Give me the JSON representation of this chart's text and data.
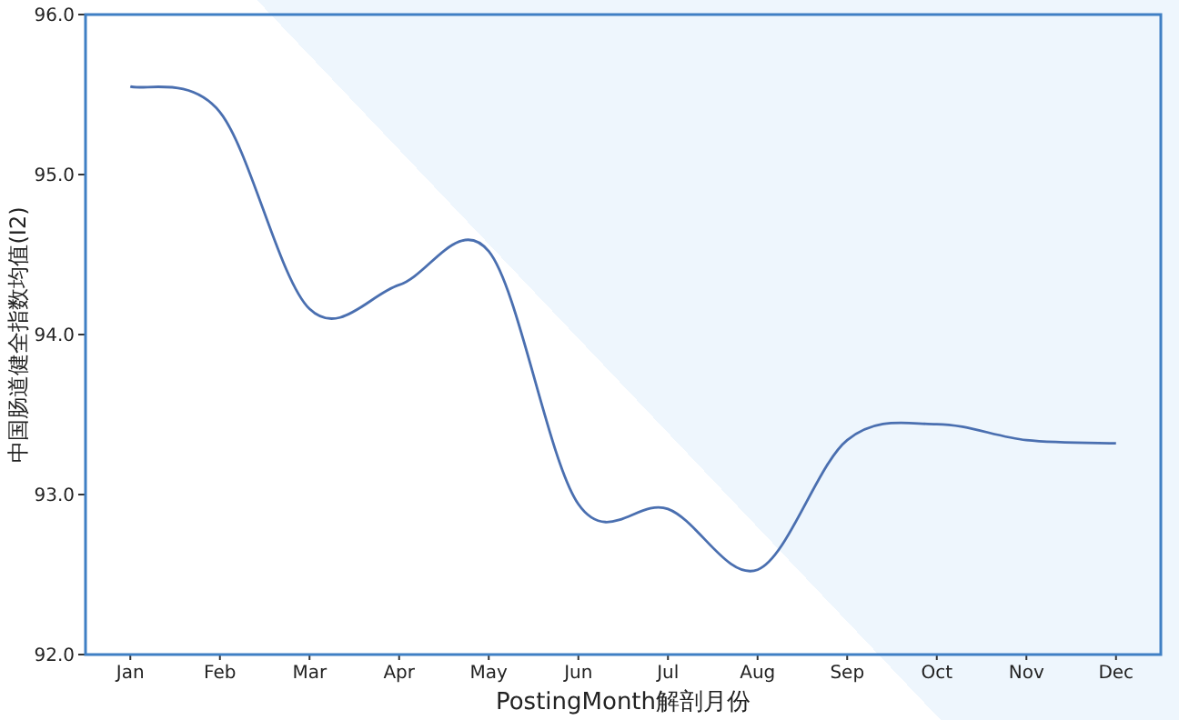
{
  "chart_data": {
    "type": "line",
    "xlabel": "PostingMonth解剖月份",
    "ylabel": "中国肠道健全指数均值(I2)",
    "categories": [
      "Jan",
      "Feb",
      "Mar",
      "Apr",
      "May",
      "Jun",
      "Jul",
      "Aug",
      "Sep",
      "Oct",
      "Nov",
      "Dec"
    ],
    "series": [
      {
        "color": "#4a6fb0",
        "values": [
          95.55,
          95.39,
          94.16,
          94.31,
          94.52,
          92.94,
          92.91,
          92.53,
          93.34,
          93.44,
          93.34,
          93.32
        ]
      }
    ],
    "ylim": [
      92,
      96
    ],
    "yticks": [
      {
        "value": 92,
        "label": "92.0"
      },
      {
        "value": 93,
        "label": "93.0"
      },
      {
        "value": 94,
        "label": "94.0"
      },
      {
        "value": 95,
        "label": "95.0"
      },
      {
        "value": 96,
        "label": "96.0"
      }
    ],
    "grid": false
  }
}
